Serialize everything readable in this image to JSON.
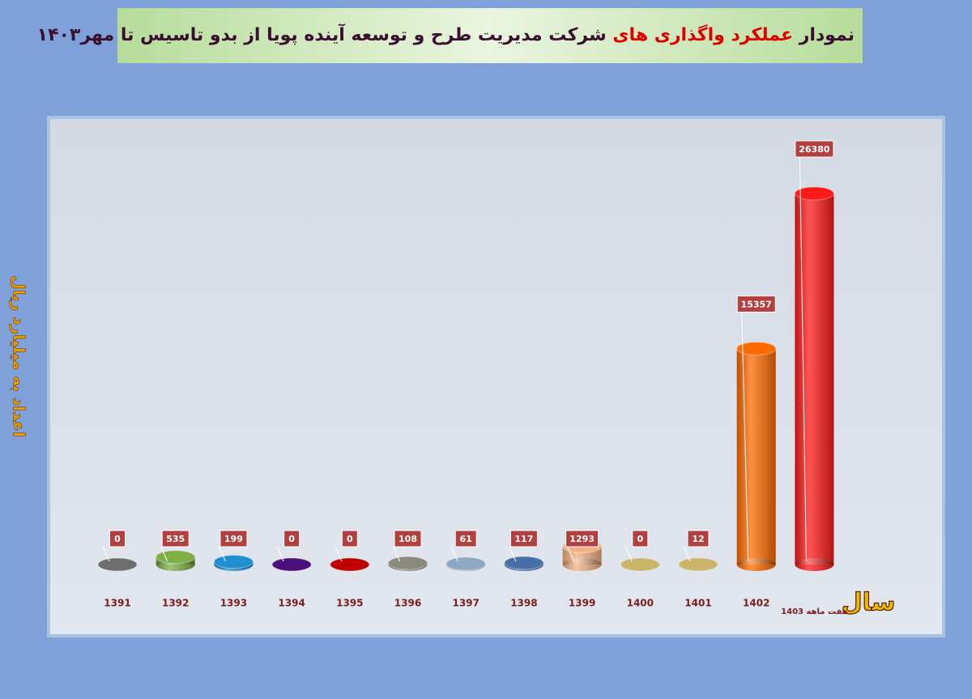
{
  "chart_data": {
    "type": "bar",
    "title_parts": [
      "نمودار",
      "عملکرد واگذاری های",
      "شرکت مدیریت طرح و توسعه آینده پویا از بدو تاسیس تا مهر۱۴۰۳"
    ],
    "y_label": "اعداد به میلیارد ریال",
    "x_label": "سال",
    "categories": [
      "1391",
      "1392",
      "1393",
      "1394",
      "1395",
      "1396",
      "1397",
      "1398",
      "1399",
      "1400",
      "1401",
      "1402",
      "هفت ماهه 1403"
    ],
    "values": [
      0,
      535,
      199,
      0,
      0,
      108,
      61,
      117,
      1293,
      0,
      12,
      15357,
      26380
    ],
    "colors": [
      "#6e6e6e",
      "#7fb045",
      "#1f8fd0",
      "#4b0f7a",
      "#c00000",
      "#8a8a7e",
      "#8fa8c2",
      "#4a6fa8",
      "#f4b183",
      "#c9b46a",
      "#c9b46a",
      "#ff6a00",
      "#ff1a1a"
    ],
    "ylim": [
      0,
      31500
    ]
  }
}
